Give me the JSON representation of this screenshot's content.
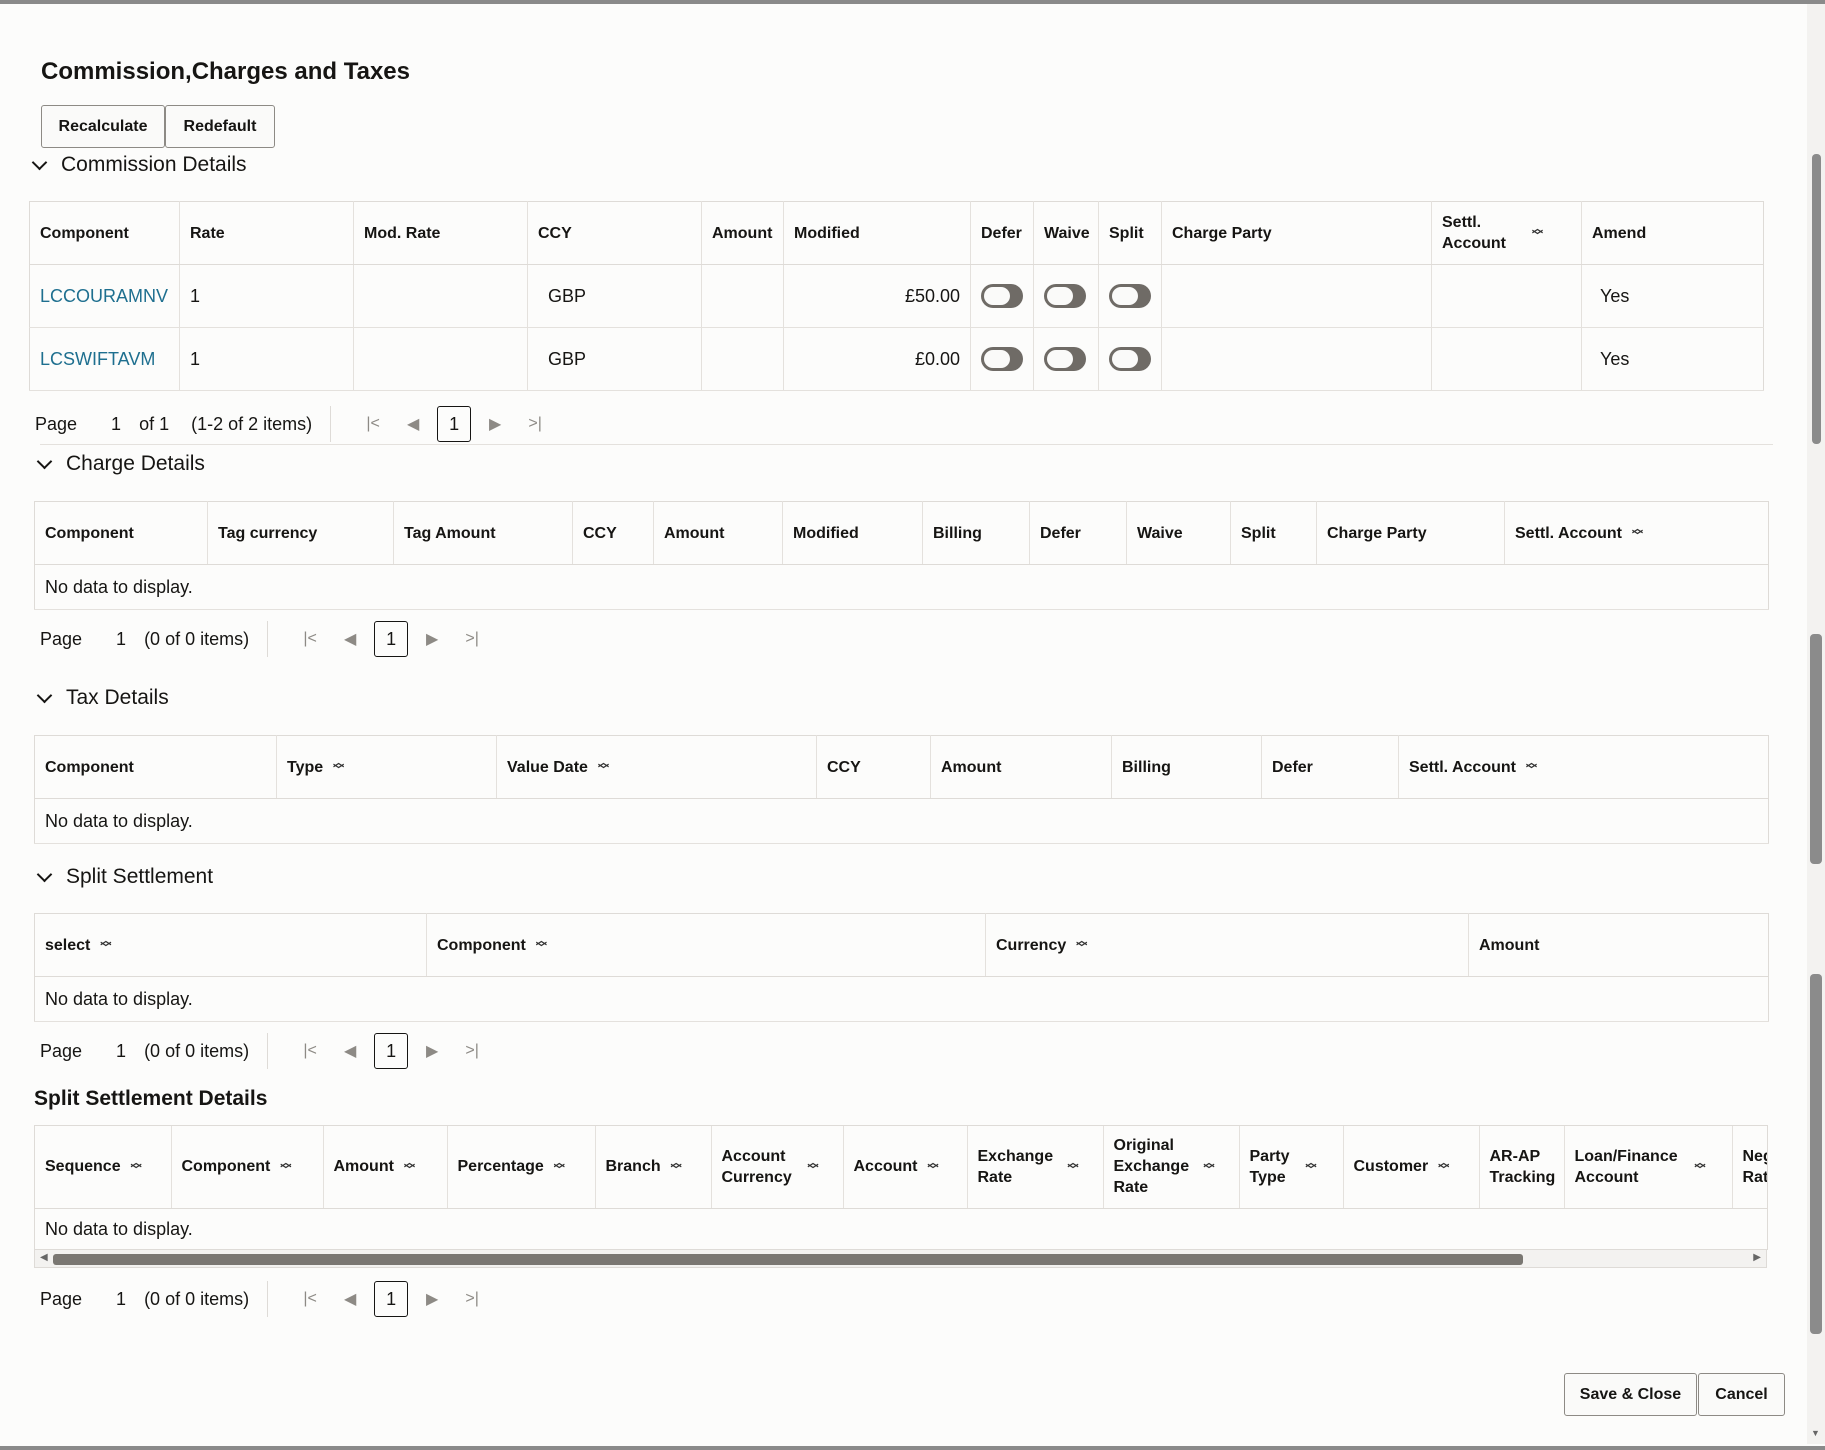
{
  "title": "Commission,Charges and Taxes",
  "toolbar": {
    "recalculate": "Recalculate",
    "redefault": "Redefault"
  },
  "commission": {
    "heading": "Commission Details",
    "columns": [
      "Component",
      "Rate",
      "Mod. Rate",
      "CCY",
      "Amount",
      "Modified",
      "Defer",
      "Waive",
      "Split",
      "Charge Party",
      "Settl. Account",
      "Amend"
    ],
    "rows": [
      {
        "component": "LCCOURAMNV",
        "rate": "1",
        "mod_rate": "",
        "ccy": "GBP",
        "amount": "",
        "modified": "£50.00",
        "charge_party": "",
        "settl_account": "",
        "amend": "Yes"
      },
      {
        "component": "LCSWIFTAVM",
        "rate": "1",
        "mod_rate": "",
        "ccy": "GBP",
        "amount": "",
        "modified": "£0.00",
        "charge_party": "",
        "settl_account": "",
        "amend": "Yes"
      }
    ],
    "pager": {
      "label": "Page",
      "page": "1",
      "of": "of 1",
      "items": "(1-2 of 2 items)",
      "current": "1"
    }
  },
  "charge": {
    "heading": "Charge Details",
    "columns": [
      "Component",
      "Tag currency",
      "Tag Amount",
      "CCY",
      "Amount",
      "Modified",
      "Billing",
      "Defer",
      "Waive",
      "Split",
      "Charge Party",
      "Settl. Account"
    ],
    "empty": "No data to display.",
    "pager": {
      "label": "Page",
      "page": "1",
      "items": "(0 of 0 items)",
      "current": "1"
    }
  },
  "tax": {
    "heading": "Tax Details",
    "columns": [
      "Component",
      "Type",
      "Value Date",
      "CCY",
      "Amount",
      "Billing",
      "Defer",
      "Settl. Account"
    ],
    "empty": "No data to display."
  },
  "split": {
    "heading": "Split Settlement",
    "columns": [
      "select",
      "Component",
      "Currency",
      "Amount"
    ],
    "empty": "No data to display.",
    "pager": {
      "label": "Page",
      "page": "1",
      "items": "(0 of 0 items)",
      "current": "1"
    }
  },
  "split_details": {
    "heading": "Split Settlement Details",
    "columns": [
      "Sequence",
      "Component",
      "Amount",
      "Percentage",
      "Branch",
      "Account Currency",
      "Account",
      "Exchange Rate",
      "Original Exchange Rate",
      "Party Type",
      "Customer",
      "AR-AP Tracking",
      "Loan/Finance Account",
      "Neg Rat"
    ],
    "empty": "No data to display.",
    "pager": {
      "label": "Page",
      "page": "1",
      "items": "(0 of 0 items)",
      "current": "1"
    }
  },
  "footer": {
    "save_close": "Save & Close",
    "cancel": "Cancel"
  },
  "icons": {
    "sort": "sort-icon",
    "chevron": "chevron-down-icon",
    "first": "first-page-icon",
    "prev": "prev-page-icon",
    "next": "next-page-icon",
    "last": "last-page-icon"
  }
}
